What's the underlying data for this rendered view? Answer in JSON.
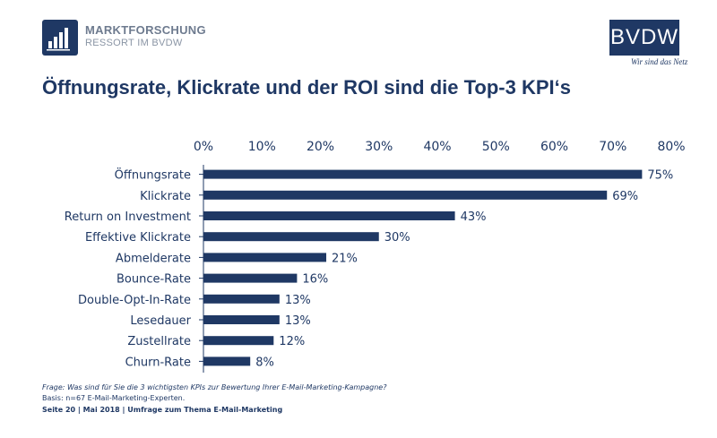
{
  "header": {
    "logo_line1": "MARKTFORSCHUNG",
    "logo_line2": "RESSORT IM BVDW",
    "brand": "BVDW",
    "brand_tagline": "Wir sind das Netz"
  },
  "colors": {
    "primary": "#1f3864",
    "text": "#1f3864"
  },
  "chart_data": {
    "type": "bar",
    "orientation": "horizontal",
    "title": "Öffnungsrate, Klickrate und der ROI sind die Top-3 KPI‘s",
    "categories": [
      "Öffnungsrate",
      "Klickrate",
      "Return on Investment",
      "Effektive Klickrate",
      "Abmelderate",
      "Bounce-Rate",
      "Double-Opt-In-Rate",
      "Lesedauer",
      "Zustellrate",
      "Churn-Rate"
    ],
    "values": [
      75,
      69,
      43,
      30,
      21,
      16,
      13,
      13,
      12,
      8
    ],
    "value_labels": [
      "75%",
      "69%",
      "43%",
      "30%",
      "21%",
      "16%",
      "13%",
      "13%",
      "12%",
      "8%"
    ],
    "xlim": [
      0,
      80
    ],
    "xticks": [
      0,
      10,
      20,
      30,
      40,
      50,
      60,
      70,
      80
    ],
    "xtick_labels": [
      "0%",
      "10%",
      "20%",
      "30%",
      "40%",
      "50%",
      "60%",
      "70%",
      "80%"
    ],
    "axis_position": "top",
    "grid": false
  },
  "footer": {
    "question": "Frage: Was sind für Sie die 3 wichtigsten KPIs zur Bewertung Ihrer E-Mail-Marketing-Kampagne?",
    "basis": "Basis: n=67 E-Mail-Marketing-Experten.",
    "page_info": "Seite 20 | Mai 2018 | Umfrage zum Thema E-Mail-Marketing"
  }
}
